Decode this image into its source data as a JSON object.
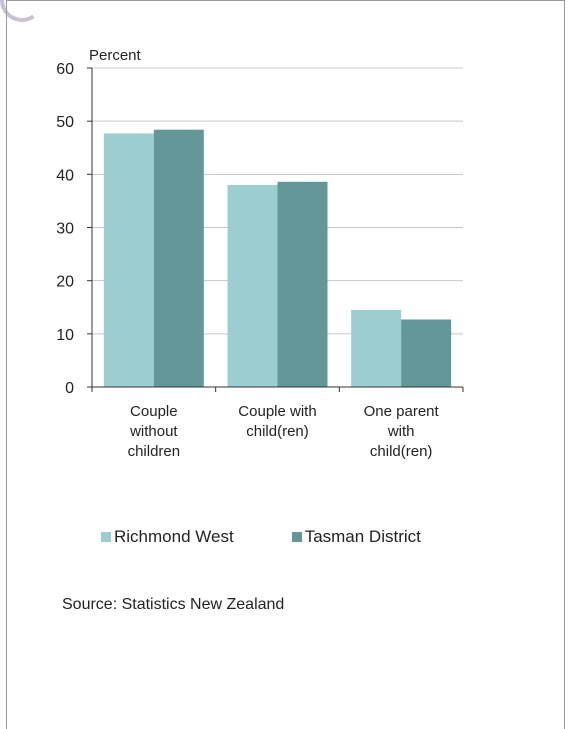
{
  "chart_data": {
    "type": "bar",
    "ylabel": "Percent",
    "ylim": [
      0,
      60
    ],
    "yticks": [
      0,
      10,
      20,
      30,
      40,
      50,
      60
    ],
    "grid": true,
    "legend_position": "bottom",
    "categories": [
      [
        "Couple",
        "without",
        "children"
      ],
      [
        "Couple with",
        "child(ren)"
      ],
      [
        "One parent",
        "with",
        "child(ren)"
      ]
    ],
    "series": [
      {
        "name": "Richmond West",
        "values": [
          47.7,
          38.0,
          14.5
        ],
        "color": "#9ccdd0"
      },
      {
        "name": "Tasman District",
        "values": [
          48.4,
          38.6,
          12.7
        ],
        "color": "#649898"
      }
    ]
  },
  "source_text": "Source: Statistics New Zealand"
}
